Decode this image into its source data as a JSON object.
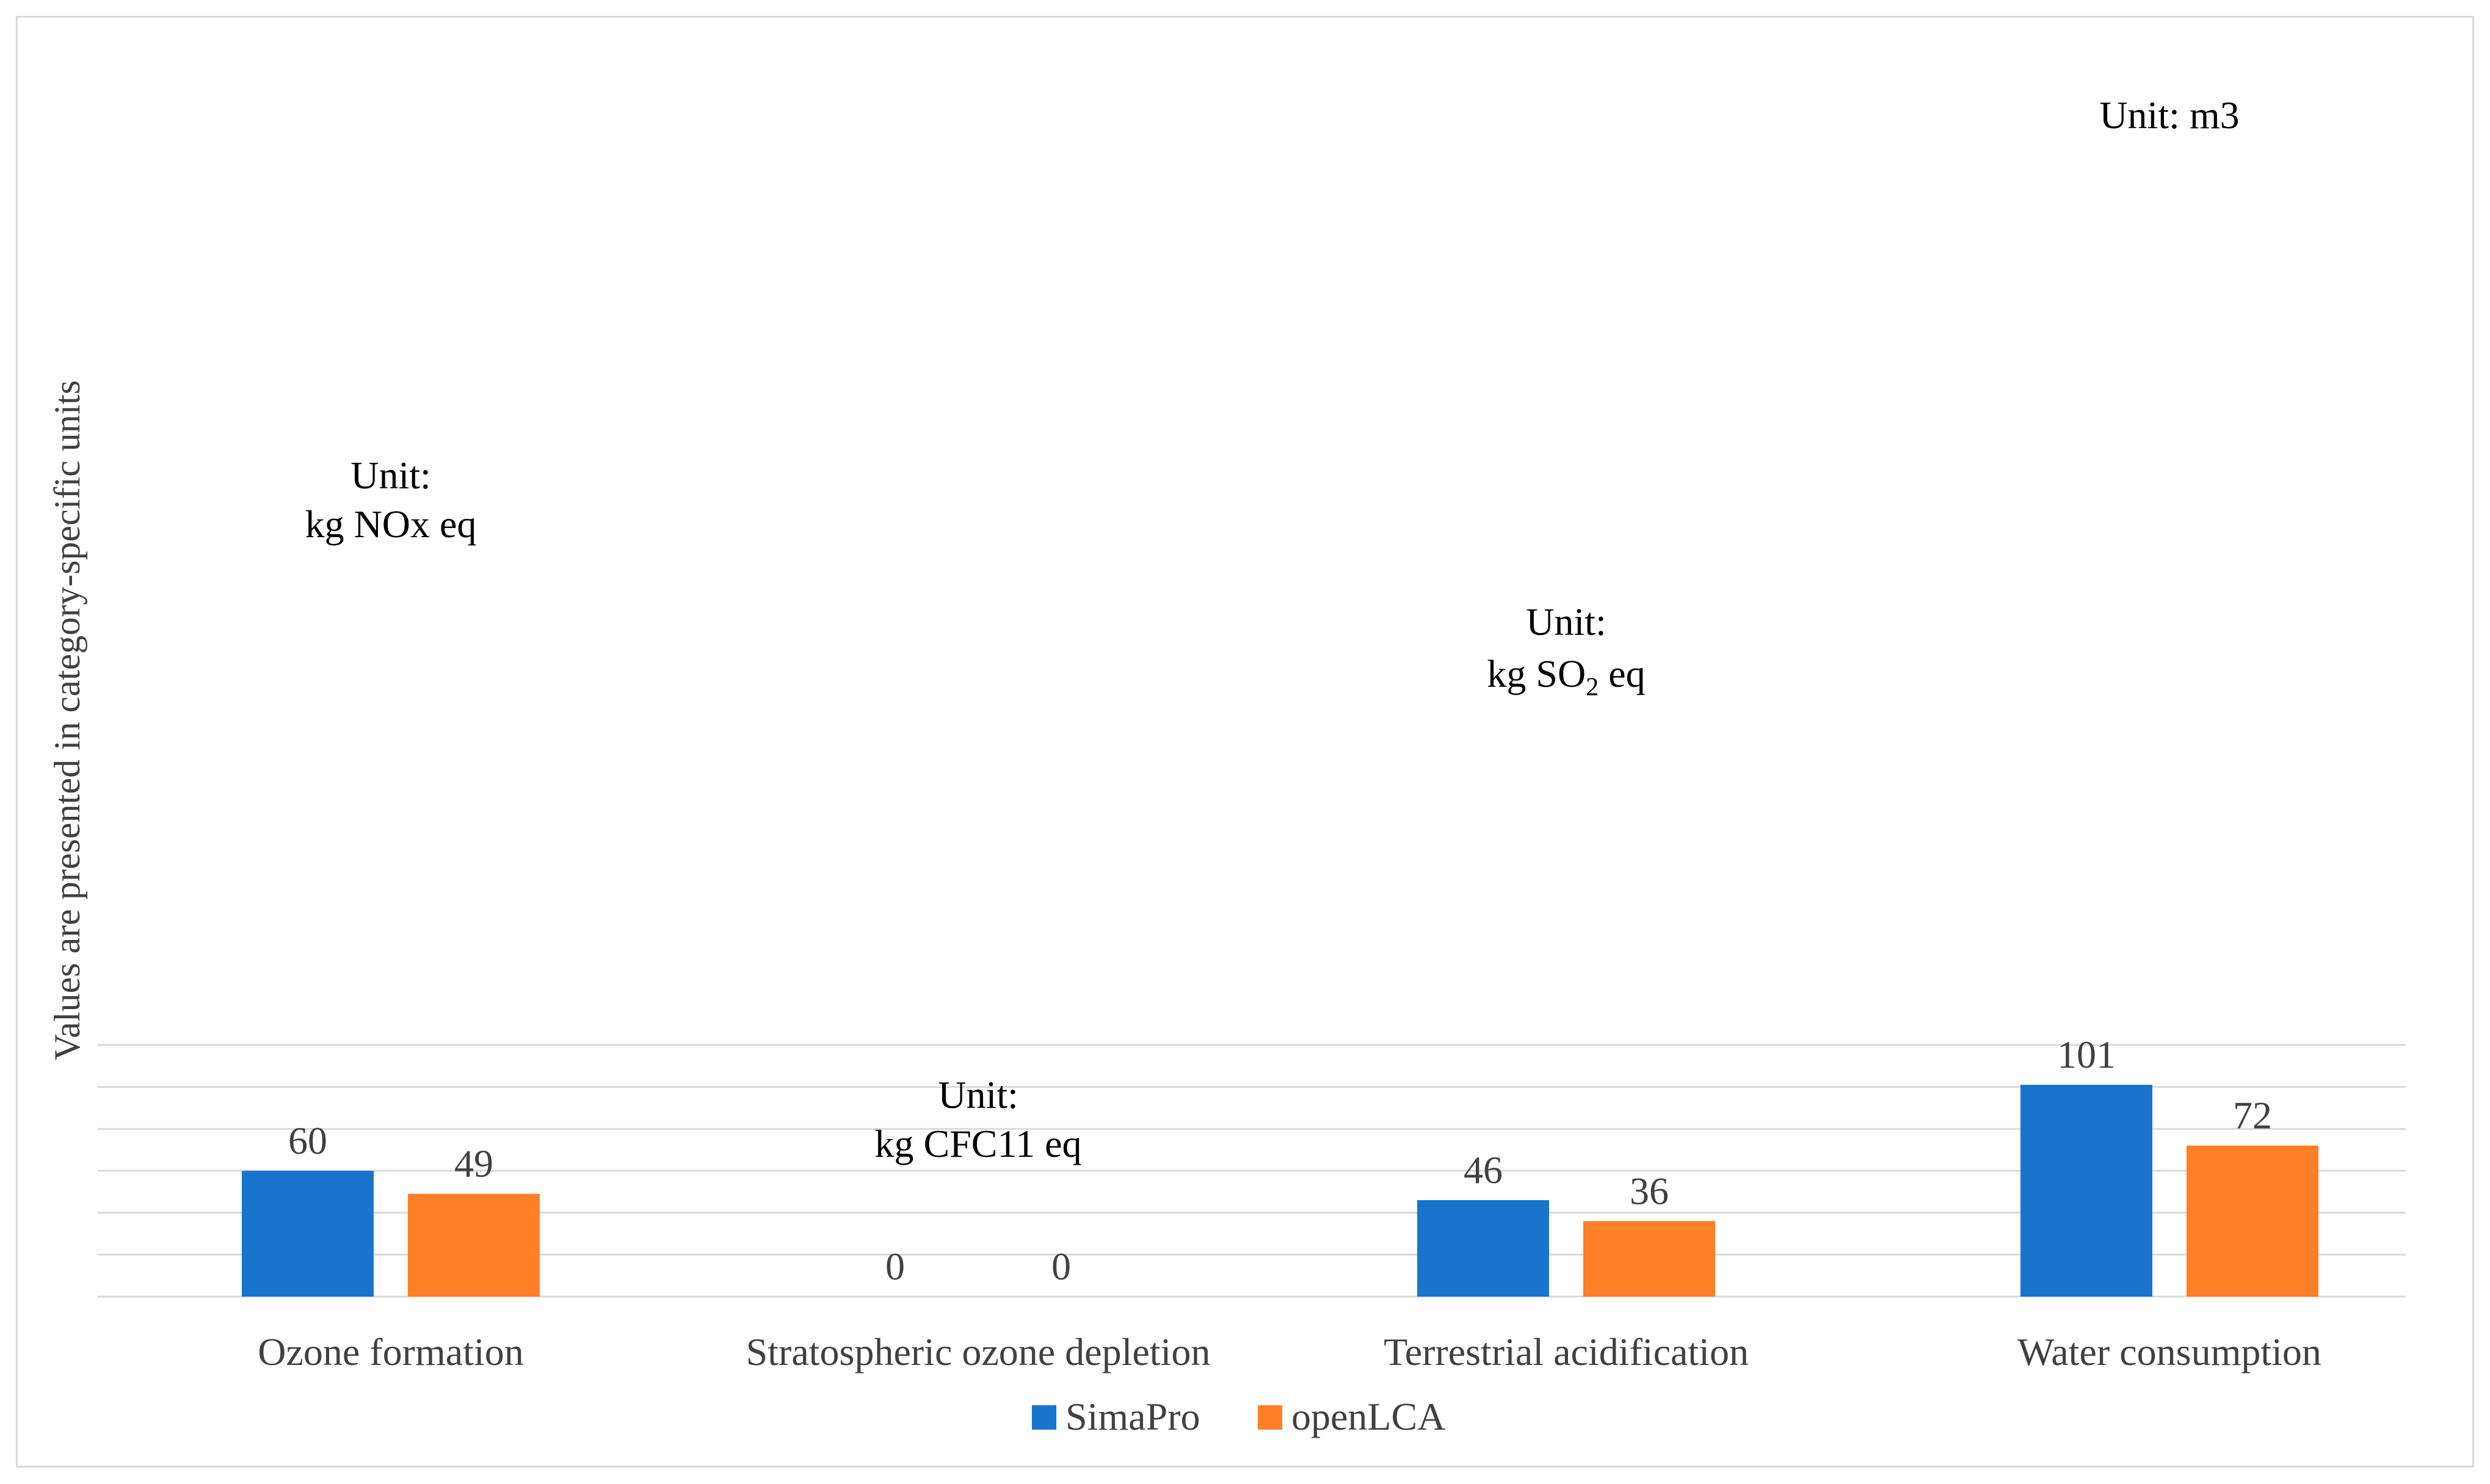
{
  "chart_data": {
    "type": "bar",
    "title": "",
    "xlabel": "",
    "ylabel": "Values are presented in category-specific units",
    "categories": [
      "Ozone formation",
      "Stratospheric ozone depletion",
      "Terrestrial acidification",
      "Water consumption"
    ],
    "series": [
      {
        "name": "SimaPro",
        "values": [
          60,
          0,
          46,
          101
        ]
      },
      {
        "name": "openLCA",
        "values": [
          49,
          0,
          36,
          72
        ]
      }
    ],
    "data_labels": {
      "SimaPro": [
        "60",
        "0",
        "46",
        "101"
      ],
      "openLCA": [
        "49",
        "0",
        "36",
        "72"
      ]
    },
    "unit_annotations": [
      {
        "line1": "Unit:",
        "line2": "kg NOx eq",
        "sub": "",
        "line2_tail": ""
      },
      {
        "line1": "Unit:",
        "line2": "kg CFC11 eq",
        "sub": "",
        "line2_tail": ""
      },
      {
        "line1": "Unit:",
        "line2": "kg SO",
        "sub": "2",
        "line2_tail": " eq"
      },
      {
        "line1": "Unit: m3",
        "line2": "",
        "sub": "",
        "line2_tail": ""
      }
    ],
    "ylim": [
      0,
      120
    ],
    "grid": true,
    "legend_position": "bottom-center",
    "colors": {
      "SimaPro": "#1874CD",
      "openLCA": "#FF7F27",
      "grid": "#d9d9d9",
      "text": "#000000",
      "axis_text": "#404040"
    }
  }
}
